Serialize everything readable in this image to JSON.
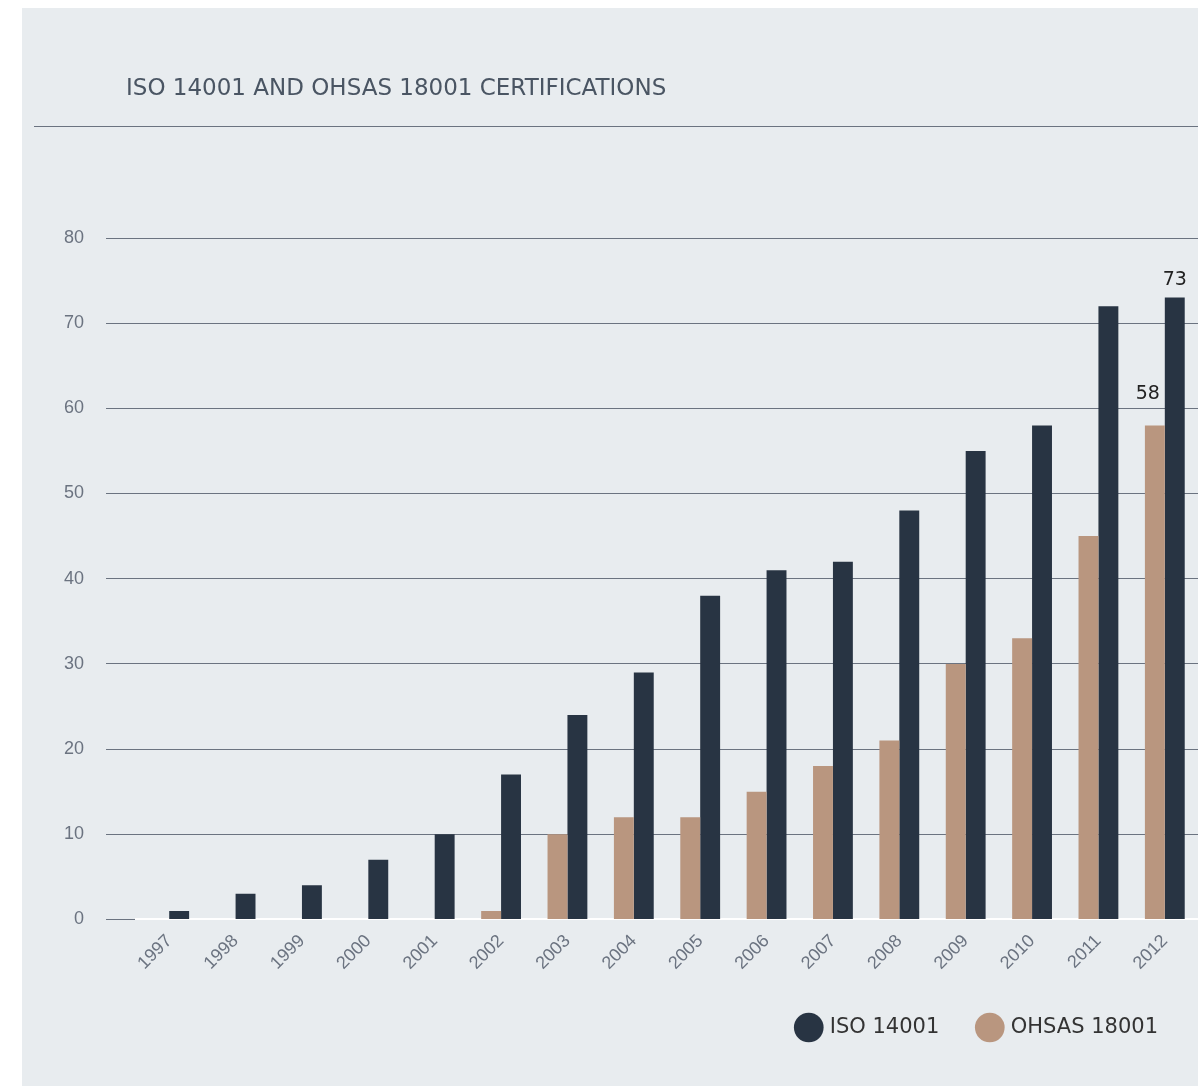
{
  "chart_data": {
    "type": "bar",
    "title": "ISO 14001 AND OHSAS 18001 CERTIFICATIONS",
    "categories": [
      "1997",
      "1998",
      "1999",
      "2000",
      "2001",
      "2002",
      "2003",
      "2004",
      "2005",
      "2006",
      "2007",
      "2008",
      "2009",
      "2010",
      "2011",
      "2012"
    ],
    "series": [
      {
        "name": "OHSAS 18001",
        "color": "#b9967f",
        "values": [
          null,
          null,
          null,
          null,
          null,
          1,
          10,
          12,
          12,
          15,
          18,
          21,
          30,
          33,
          45,
          58
        ],
        "value_labels": [
          null,
          null,
          null,
          null,
          null,
          null,
          null,
          null,
          null,
          null,
          null,
          null,
          null,
          null,
          null,
          "58"
        ]
      },
      {
        "name": "ISO 14001",
        "color": "#283443",
        "values": [
          1,
          3,
          4,
          7,
          10,
          17,
          24,
          29,
          38,
          41,
          42,
          48,
          55,
          58,
          72,
          73
        ],
        "value_labels": [
          null,
          null,
          null,
          null,
          null,
          null,
          null,
          null,
          null,
          null,
          null,
          null,
          null,
          null,
          null,
          "73"
        ]
      }
    ],
    "ylim": [
      0,
      80
    ],
    "yticks": [
      0,
      10,
      20,
      30,
      40,
      50,
      60,
      70,
      80
    ],
    "grid": "y",
    "legend": "bottom right"
  }
}
